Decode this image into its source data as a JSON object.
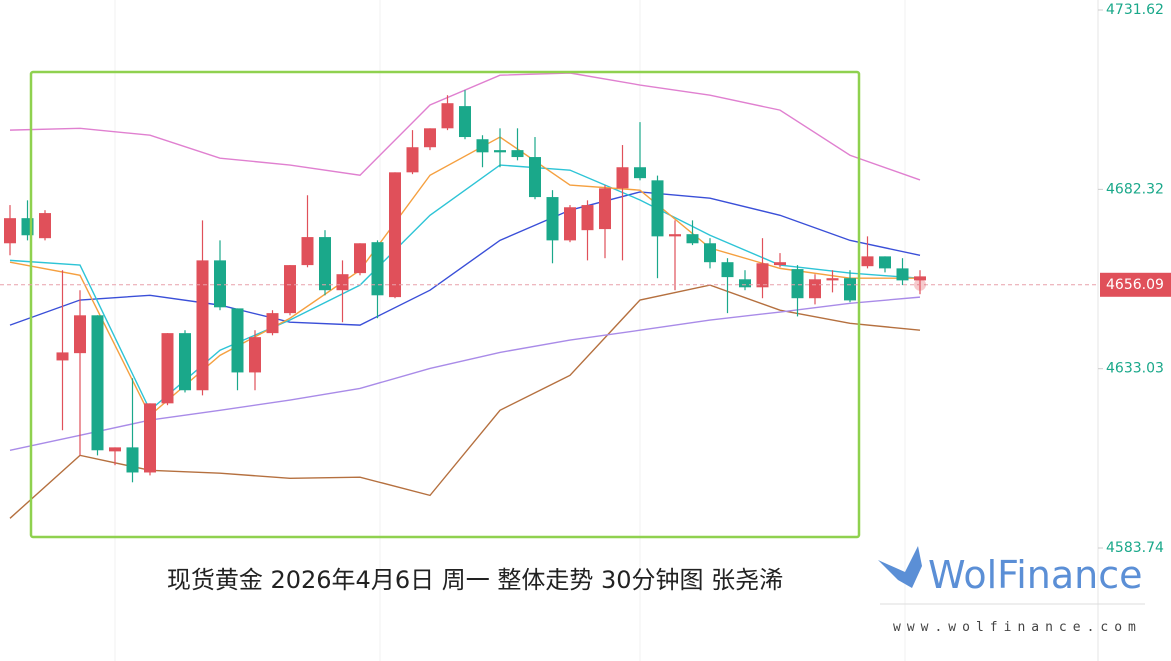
{
  "chart_data": {
    "type": "candlestick",
    "caption": "现货黄金  2026年4月6日 周一 整体走势 30分钟图 张尧浠",
    "ylim": [
      4583.74,
      4731.62
    ],
    "yticks": [
      4583.74,
      4633.03,
      4682.32,
      4731.62
    ],
    "last_price": 4656.09,
    "up_color": "#e0505a",
    "down_color": "#1aa88a",
    "open": [
      4667.5,
      4674.4,
      4668.9,
      4635.3,
      4637.3,
      4647.7,
      4610.3,
      4611.4,
      4604.5,
      4623.5,
      4642.8,
      4627.1,
      4662.8,
      4649.6,
      4632.0,
      4642.8,
      4648.3,
      4661.5,
      4669.2,
      4654.6,
      4659.3,
      4667.8,
      4652.7,
      4687.0,
      4693.9,
      4699.1,
      4705.2,
      4696.1,
      4693.1,
      4693.1,
      4691.2,
      4680.2,
      4668.3,
      4671.1,
      4671.4,
      4682.6,
      4688.4,
      4684.8,
      4669.4,
      4670.0,
      4667.5,
      4662.3,
      4657.6,
      4655.4,
      4661.5,
      4660.4,
      4652.4,
      4657.3,
      4657.9,
      4661.2,
      4663.9,
      4660.6,
      4657.3
    ],
    "high": [
      4678.0,
      4679.3,
      4676.6,
      4660.1,
      4654.6,
      4647.7,
      4611.4,
      4630.4,
      4623.5,
      4642.8,
      4643.6,
      4673.8,
      4668.3,
      4649.6,
      4643.6,
      4649.1,
      4661.5,
      4680.7,
      4671.1,
      4662.8,
      4667.5,
      4668.3,
      4687.0,
      4698.6,
      4699.1,
      4708.2,
      4709.6,
      4697.2,
      4699.1,
      4699.1,
      4696.7,
      4682.1,
      4678.0,
      4679.3,
      4683.5,
      4694.5,
      4700.8,
      4686.1,
      4673.8,
      4673.8,
      4668.9,
      4663.4,
      4660.1,
      4668.9,
      4664.8,
      4661.5,
      4659.0,
      4660.1,
      4660.1,
      4669.4,
      4663.9,
      4663.4,
      4660.1
    ],
    "low": [
      4664.2,
      4668.3,
      4668.3,
      4616.1,
      4609.2,
      4609.2,
      4606.5,
      4601.8,
      4603.7,
      4623.0,
      4626.5,
      4625.7,
      4649.1,
      4627.1,
      4627.1,
      4642.2,
      4647.7,
      4660.9,
      4653.2,
      4645.8,
      4658.7,
      4646.9,
      4652.4,
      4686.5,
      4693.1,
      4698.6,
      4696.1,
      4688.4,
      4688.4,
      4690.3,
      4679.6,
      4662.0,
      4667.8,
      4662.8,
      4663.4,
      4662.8,
      4684.8,
      4657.9,
      4654.6,
      4667.0,
      4660.6,
      4648.3,
      4654.6,
      4652.4,
      4660.9,
      4647.4,
      4650.7,
      4654.0,
      4651.3,
      4660.6,
      4659.5,
      4656.0,
      4653.5
    ],
    "close": [
      4674.4,
      4669.7,
      4675.8,
      4637.5,
      4647.7,
      4610.6,
      4611.4,
      4604.5,
      4623.5,
      4642.8,
      4627.1,
      4662.8,
      4649.9,
      4632.0,
      4641.7,
      4648.3,
      4661.5,
      4669.2,
      4654.6,
      4659.0,
      4667.5,
      4653.2,
      4687.0,
      4693.9,
      4699.1,
      4706.0,
      4696.7,
      4692.5,
      4692.5,
      4691.2,
      4680.2,
      4668.3,
      4677.4,
      4678.0,
      4682.6,
      4688.4,
      4685.4,
      4669.4,
      4670.0,
      4667.5,
      4662.3,
      4658.2,
      4655.4,
      4662.0,
      4662.3,
      4652.4,
      4657.6,
      4657.9,
      4651.8,
      4663.9,
      4660.6,
      4657.3,
      4658.4
    ],
    "lines": [
      {
        "color": "#e080d0",
        "x": [
          0,
          4,
          8,
          12,
          16,
          20,
          24,
          28,
          32,
          36,
          40,
          44,
          48,
          52
        ],
        "values": [
          4698.6,
          4699.1,
          4697.2,
          4690.9,
          4689.0,
          4686.2,
          4705.5,
          4713.7,
          4714.3,
          4711.0,
          4708.2,
          4704.1,
          4691.7,
          4684.9
        ]
      },
      {
        "color": "#b5703f",
        "x": [
          0,
          4,
          8,
          12,
          16,
          20,
          24,
          28,
          32,
          36,
          40,
          44,
          48,
          52
        ],
        "values": [
          4591.9,
          4609.2,
          4605.1,
          4604.3,
          4602.9,
          4603.2,
          4598.2,
          4621.6,
          4631.2,
          4651.9,
          4656.0,
          4649.1,
          4645.5,
          4643.6
        ]
      },
      {
        "color": "#a98be8",
        "x": [
          0,
          4,
          8,
          12,
          16,
          20,
          24,
          28,
          32,
          36,
          40,
          44,
          48,
          52
        ],
        "values": [
          4610.6,
          4614.7,
          4618.9,
          4621.6,
          4624.4,
          4627.6,
          4633.1,
          4637.5,
          4640.9,
          4643.6,
          4646.4,
          4648.6,
          4651.0,
          4652.7
        ]
      },
      {
        "color": "#3a4fd8",
        "x": [
          0,
          4,
          8,
          12,
          16,
          20,
          24,
          28,
          32,
          36,
          40,
          44,
          48,
          52
        ],
        "values": [
          4645.0,
          4651.9,
          4653.2,
          4650.5,
          4645.8,
          4645.0,
          4654.6,
          4668.3,
          4676.6,
          4681.6,
          4679.9,
          4675.2,
          4668.3,
          4664.2
        ]
      },
      {
        "color": "#2ec4d6",
        "x": [
          0,
          4,
          8,
          12,
          16,
          20,
          24,
          28,
          32,
          36,
          40,
          44,
          48,
          52
        ],
        "values": [
          4662.8,
          4661.5,
          4621.6,
          4638.1,
          4646.4,
          4656.0,
          4675.2,
          4689.0,
          4687.6,
          4679.4,
          4669.7,
          4661.5,
          4659.3,
          4657.9
        ]
      },
      {
        "color": "#f5a040",
        "x": [
          0,
          4,
          8,
          12,
          16,
          20,
          24,
          28,
          32,
          36,
          40,
          44,
          48,
          52
        ],
        "values": [
          4662.3,
          4658.7,
          4620.2,
          4636.7,
          4646.9,
          4660.1,
          4686.2,
          4696.7,
          4683.5,
          4682.1,
          4666.2,
          4660.6,
          4657.9,
          4657.9
        ]
      }
    ]
  },
  "logo": {
    "name": "WolFinance",
    "url": "www.wolfinance.com"
  }
}
